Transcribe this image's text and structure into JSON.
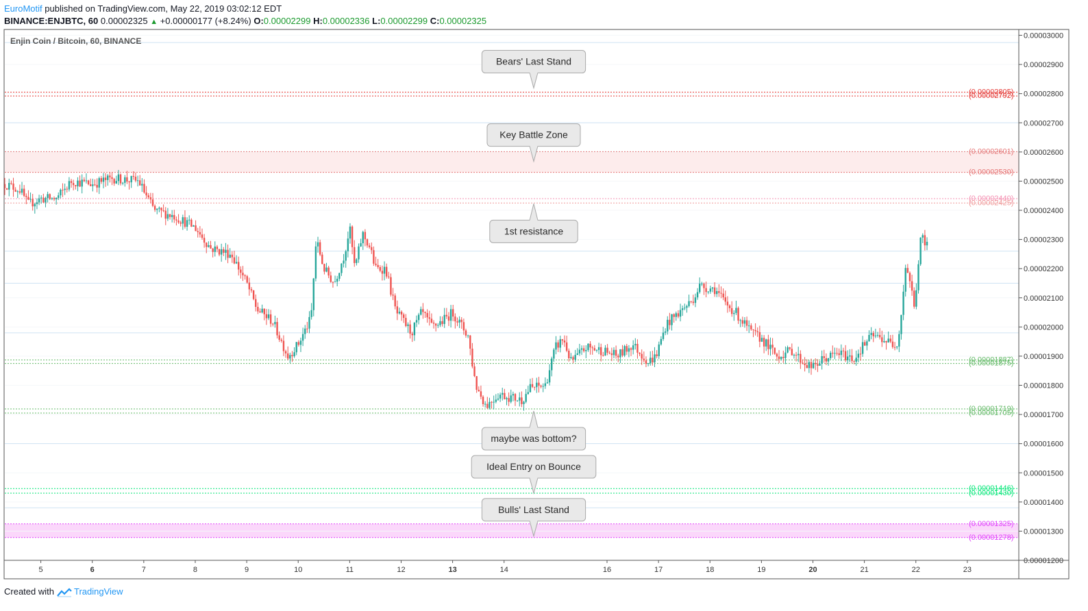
{
  "header": {
    "author": "EuroMotif",
    "published_text": " published on TradingView.com, May 22, 2019 03:02:12 EDT",
    "symbol": "BINANCE:ENJBTC, 60",
    "last_price": "0.00002325",
    "change_arrow": "▲",
    "change": "+0.00000177 (+8.24%)",
    "ohlc": [
      {
        "label": "O:",
        "value": "0.00002299"
      },
      {
        "label": "H:",
        "value": "0.00002336"
      },
      {
        "label": "L:",
        "value": "0.00002299"
      },
      {
        "label": "C:",
        "value": "0.00002325"
      }
    ]
  },
  "chart_data": {
    "type": "candlestick",
    "title": "Enjin Coin / Bitcoin, 60, BINANCE",
    "y_unit": "BTC",
    "ylim": [
      1.2e-05,
      3.02e-05
    ],
    "y_ticks": [
      "0.00003000",
      "0.00002900",
      "0.00002800",
      "0.00002700",
      "0.00002600",
      "0.00002500",
      "0.00002400",
      "0.00002300",
      "0.00002200",
      "0.00002100",
      "0.00002000",
      "0.00001900",
      "0.00001800",
      "0.00001700",
      "0.00001600",
      "0.00001500",
      "0.00001400",
      "0.00001300",
      "0.00001200"
    ],
    "x_range_days": [
      4.3,
      24.0
    ],
    "x_ticks": [
      {
        "day": 5,
        "label": "5",
        "bold": false
      },
      {
        "day": 6,
        "label": "6",
        "bold": true
      },
      {
        "day": 7,
        "label": "7",
        "bold": false
      },
      {
        "day": 8,
        "label": "8",
        "bold": false
      },
      {
        "day": 9,
        "label": "9",
        "bold": false
      },
      {
        "day": 10,
        "label": "10",
        "bold": false
      },
      {
        "day": 11,
        "label": "11",
        "bold": false
      },
      {
        "day": 12,
        "label": "12",
        "bold": false
      },
      {
        "day": 13,
        "label": "13",
        "bold": true
      },
      {
        "day": 14,
        "label": "14",
        "bold": false
      },
      {
        "day": 16,
        "label": "16",
        "bold": false
      },
      {
        "day": 17,
        "label": "17",
        "bold": false
      },
      {
        "day": 18,
        "label": "18",
        "bold": false
      },
      {
        "day": 19,
        "label": "19",
        "bold": false
      },
      {
        "day": 20,
        "label": "20",
        "bold": true
      },
      {
        "day": 21,
        "label": "21",
        "bold": false
      },
      {
        "day": 22,
        "label": "22",
        "bold": false
      },
      {
        "day": 23,
        "label": "23",
        "bold": false
      }
    ],
    "grid": true,
    "price_path": [
      [
        4.3,
        24.9
      ],
      [
        4.6,
        24.7
      ],
      [
        4.75,
        24.2
      ],
      [
        5.0,
        24.4
      ],
      [
        5.3,
        24.4
      ],
      [
        5.6,
        25.0
      ],
      [
        6.0,
        24.9
      ],
      [
        6.4,
        25.1
      ],
      [
        6.9,
        25.0
      ],
      [
        7.2,
        24.0
      ],
      [
        7.6,
        23.8
      ],
      [
        8.0,
        23.4
      ],
      [
        8.3,
        22.7
      ],
      [
        8.7,
        22.5
      ],
      [
        9.0,
        21.5
      ],
      [
        9.2,
        20.6
      ],
      [
        9.5,
        20.2
      ],
      [
        9.8,
        19.0
      ],
      [
        10.0,
        19.4
      ],
      [
        10.25,
        20.3
      ],
      [
        10.35,
        23.0
      ],
      [
        10.5,
        22.0
      ],
      [
        10.7,
        21.5
      ],
      [
        10.9,
        22.5
      ],
      [
        11.0,
        23.4
      ],
      [
        11.1,
        22.0
      ],
      [
        11.25,
        23.2
      ],
      [
        11.4,
        22.7
      ],
      [
        11.5,
        22.0
      ],
      [
        11.7,
        22.0
      ],
      [
        11.9,
        20.5
      ],
      [
        12.0,
        20.3
      ],
      [
        12.2,
        19.8
      ],
      [
        12.4,
        20.5
      ],
      [
        12.6,
        20.0
      ],
      [
        12.8,
        20.2
      ],
      [
        13.0,
        20.5
      ],
      [
        13.3,
        19.7
      ],
      [
        13.45,
        18.0
      ],
      [
        13.65,
        17.3
      ],
      [
        13.9,
        17.7
      ],
      [
        14.1,
        17.6
      ],
      [
        14.35,
        17.5
      ],
      [
        14.5,
        17.9
      ],
      [
        14.8,
        18.0
      ],
      [
        15.0,
        19.3
      ],
      [
        15.15,
        19.6
      ],
      [
        15.3,
        18.8
      ],
      [
        15.6,
        19.3
      ],
      [
        15.9,
        19.2
      ],
      [
        16.2,
        19.0
      ],
      [
        16.5,
        19.4
      ],
      [
        16.8,
        18.8
      ],
      [
        16.95,
        19.0
      ],
      [
        17.15,
        20.1
      ],
      [
        17.4,
        20.5
      ],
      [
        17.65,
        20.9
      ],
      [
        17.8,
        21.4
      ],
      [
        18.1,
        21.3
      ],
      [
        18.3,
        20.8
      ],
      [
        18.5,
        20.5
      ],
      [
        18.8,
        19.8
      ],
      [
        19.0,
        19.6
      ],
      [
        19.3,
        19.0
      ],
      [
        19.6,
        19.2
      ],
      [
        19.8,
        18.8
      ],
      [
        20.0,
        18.6
      ],
      [
        20.2,
        18.9
      ],
      [
        20.5,
        19.1
      ],
      [
        20.8,
        18.9
      ],
      [
        20.95,
        19.3
      ],
      [
        21.15,
        19.7
      ],
      [
        21.35,
        19.6
      ],
      [
        21.55,
        19.4
      ],
      [
        21.65,
        19.5
      ],
      [
        21.72,
        20.5
      ],
      [
        21.8,
        22.1
      ],
      [
        21.9,
        21.5
      ],
      [
        21.97,
        20.6
      ],
      [
        22.03,
        21.8
      ],
      [
        22.1,
        23.1
      ],
      [
        22.15,
        23.0
      ],
      [
        22.2,
        22.6
      ],
      [
        22.25,
        23.25
      ]
    ],
    "levels": [
      {
        "value": "0.00002805",
        "label": "(0.00002805)",
        "color": "#e53935"
      },
      {
        "value": "0.00002792",
        "label": "(0.00002792)",
        "color": "#e53935"
      },
      {
        "value": "0.00002601",
        "label": "(0.00002601)",
        "color": "#e57373"
      },
      {
        "value": "0.00002530",
        "label": "(0.00002530)",
        "color": "#e57373"
      },
      {
        "value": "0.00002440",
        "label": "(0.00002440)",
        "color": "#f48fb1"
      },
      {
        "value": "0.00002425",
        "label": "(0.00002425)",
        "color": "#ef9a9a"
      },
      {
        "value": "0.00001887",
        "label": "(0.00001887)",
        "color": "#66bb6a"
      },
      {
        "value": "0.00001875",
        "label": "(0.00001875)",
        "color": "#66bb6a"
      },
      {
        "value": "0.00001719",
        "label": "(0.00001719)",
        "color": "#66bb6a"
      },
      {
        "value": "0.00001705",
        "label": "(0.00001705)",
        "color": "#66bb6a"
      },
      {
        "value": "0.00001446",
        "label": "(0.00001446)",
        "color": "#00e676"
      },
      {
        "value": "0.00001430",
        "label": "(0.00001430)",
        "color": "#00e676"
      },
      {
        "value": "0.00001325",
        "label": "(0.00001325)",
        "color": "#e040fb"
      },
      {
        "value": "0.00001278",
        "label": "(0.00001278)",
        "color": "#e040fb"
      }
    ],
    "zones": [
      {
        "from": "0.00002530",
        "to": "0.00002601",
        "color": "#fdecec"
      },
      {
        "from": "0.00001278",
        "to": "0.00001325",
        "color": "#fbd7fb"
      }
    ],
    "blue_lines": [
      "0.00002975",
      "0.00002700",
      "0.00002260",
      "0.00002150",
      "0.00001980",
      "0.00001600",
      "0.00001380"
    ],
    "annotations": [
      {
        "text": "Bears' Last Stand",
        "anchor": "0.00002805",
        "pointer": "down"
      },
      {
        "text": "Key Battle Zone",
        "anchor": "0.00002530",
        "pointer": "down"
      },
      {
        "text": "1st resistance",
        "anchor": "0.00002425",
        "pointer": "up"
      },
      {
        "text": "maybe was bottom?",
        "anchor": "0.00001705",
        "pointer": "up"
      },
      {
        "text": "Ideal Entry on Bounce",
        "anchor": "0.00001430",
        "pointer": "down"
      },
      {
        "text": "Bulls' Last Stand",
        "anchor": "0.00001278",
        "pointer": "down"
      }
    ],
    "colors": {
      "up": "#26a69a",
      "down": "#ef5350",
      "grid": "#e1ecf2",
      "axis": "#555555"
    }
  },
  "footer": {
    "created_with": "Created with",
    "brand": "TradingView"
  }
}
